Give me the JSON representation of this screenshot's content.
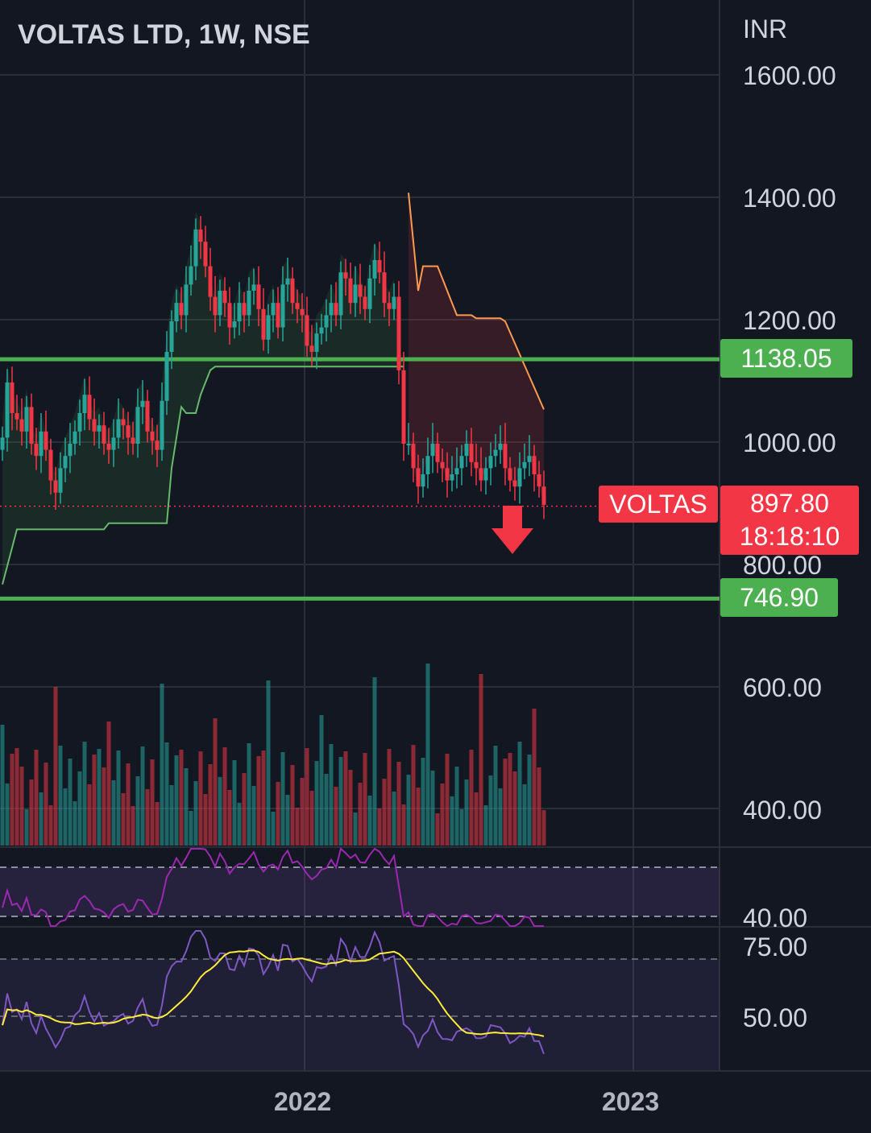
{
  "title": "VOLTAS LTD, 1W, NSE",
  "currency": "INR",
  "symbol": "VOLTAS",
  "last_price": "897.80",
  "countdown": "18:18:10",
  "levels": {
    "upper": "1138.05",
    "lower": "746.90"
  },
  "colors": {
    "background": "#131722",
    "bull": "#26a69a",
    "bear": "#f23645",
    "level_line": "#4caf50",
    "support_line": "#66bb6a",
    "resistance_line": "#ff9950",
    "rsi_line": "#9c27b0",
    "osc_line": "#7e57c2",
    "osc_signal": "#ffeb3b",
    "arrow": "#f23645"
  },
  "chart_data": {
    "type": "candlestick",
    "title": "VOLTAS LTD, 1W, NSE",
    "y_axis": {
      "ticks": [
        "1600.00",
        "1400.00",
        "1200.00",
        "1000.00",
        "800.00",
        "600.00",
        "400.00"
      ],
      "range": [
        400,
        1600
      ],
      "unit": "INR"
    },
    "x_axis": {
      "ticks": [
        "2022",
        "2023"
      ]
    },
    "horizontal_levels": [
      1138.05,
      746.9
    ],
    "last_price": 897.8,
    "candles_close": [
      1010,
      1100,
      1050,
      1040,
      1020,
      1060,
      1000,
      980,
      1020,
      990,
      940,
      920,
      960,
      980,
      1000,
      1020,
      1050,
      1080,
      1040,
      1020,
      1030,
      1000,
      990,
      1010,
      1040,
      1030,
      1010,
      1000,
      1060,
      1070,
      1020,
      1005,
      990,
      1070,
      1150,
      1200,
      1230,
      1210,
      1260,
      1290,
      1350,
      1330,
      1290,
      1240,
      1210,
      1250,
      1230,
      1190,
      1200,
      1230,
      1210,
      1250,
      1260,
      1220,
      1170,
      1210,
      1230,
      1190,
      1260,
      1270,
      1230,
      1220,
      1210,
      1160,
      1150,
      1180,
      1190,
      1210,
      1230,
      1210,
      1280,
      1270,
      1230,
      1260,
      1240,
      1220,
      1270,
      1300,
      1280,
      1230,
      1220,
      1240,
      1120,
      1000,
      1000,
      960,
      930,
      950,
      980,
      1000,
      970,
      960,
      940,
      950,
      960,
      980,
      1000,
      970,
      960,
      940,
      960,
      980,
      990,
      1000,
      960,
      940,
      930,
      960,
      970,
      980,
      950,
      930,
      900
    ],
    "upper_panel_ticks": [
      "40.00"
    ],
    "lower_panel_ticks": [
      "75.00",
      "50.00"
    ]
  }
}
